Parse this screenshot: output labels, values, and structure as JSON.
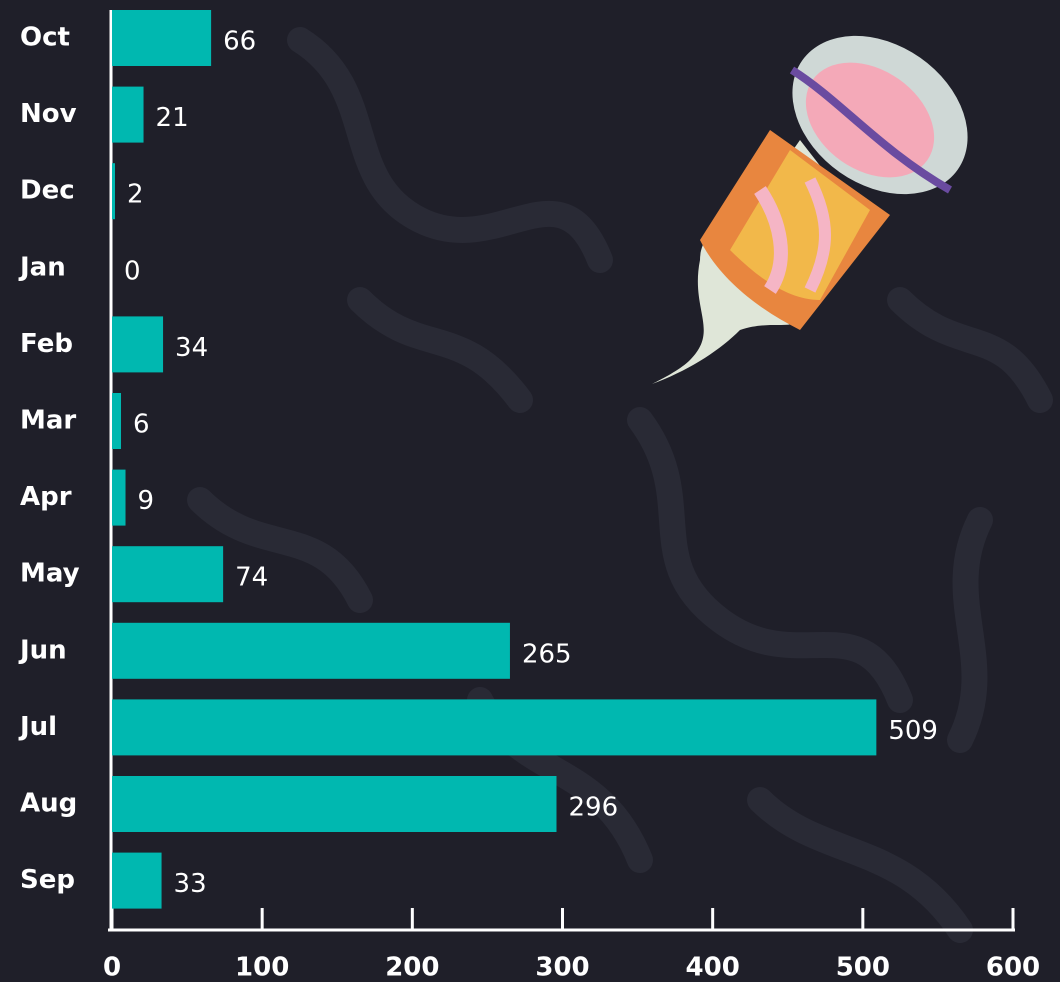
{
  "chart_data": {
    "type": "bar",
    "orientation": "horizontal",
    "categories": [
      "Oct",
      "Nov",
      "Dec",
      "Jan",
      "Feb",
      "Mar",
      "Apr",
      "May",
      "Jun",
      "Jul",
      "Aug",
      "Sep"
    ],
    "values": [
      66,
      21,
      2,
      0,
      34,
      6,
      9,
      74,
      265,
      509,
      296,
      33
    ],
    "color": "#00b8b0",
    "xlim": [
      0,
      600
    ],
    "xticks": [
      0,
      100,
      200,
      300,
      400,
      500,
      600
    ]
  }
}
